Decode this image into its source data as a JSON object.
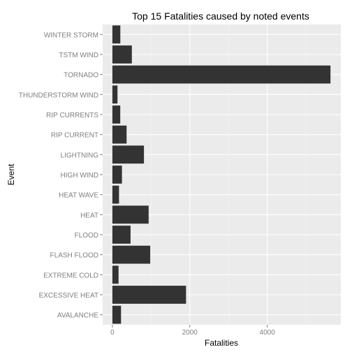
{
  "chart_data": {
    "type": "bar",
    "orientation": "horizontal",
    "title": "Top 15 Fatalities caused by noted events",
    "xlabel": "Fatalities",
    "ylabel": "Event",
    "categories": [
      "WINTER STORM",
      "TSTM WIND",
      "TORNADO",
      "THUNDERSTORM WIND",
      "RIP CURRENTS",
      "RIP CURRENT",
      "LIGHTNING",
      "HIGH WIND",
      "HEAT WAVE",
      "HEAT",
      "FLOOD",
      "FLASH FLOOD",
      "EXTREME COLD",
      "EXCESSIVE HEAT",
      "AVALANCHE"
    ],
    "values": [
      206,
      504,
      5633,
      133,
      204,
      368,
      816,
      248,
      172,
      937,
      470,
      978,
      160,
      1903,
      224
    ],
    "xlim": [
      -250,
      5900
    ],
    "xticks": [
      0,
      2000,
      4000
    ],
    "xtick_labels": [
      "0",
      "2000",
      "4000"
    ],
    "grid": true,
    "legend": "none",
    "colors": {
      "bar": "#333333",
      "panel": "#ebebeb",
      "grid_major": "#ffffff",
      "grid_minor": "#f5f5f5",
      "tick_label": "#7f7f7f",
      "title": "#000000"
    }
  }
}
